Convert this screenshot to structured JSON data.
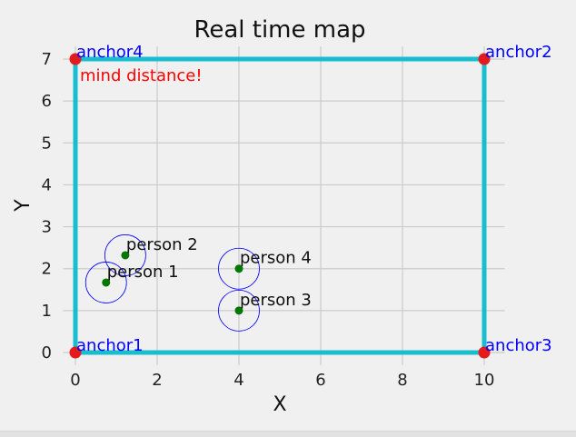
{
  "chart_data": {
    "type": "scatter",
    "title": "Real time map",
    "xlabel": "X",
    "ylabel": "Y",
    "xlim": [
      -0.3,
      10.5
    ],
    "ylim": [
      -0.3,
      7.3
    ],
    "xticks": [
      0,
      2,
      4,
      6,
      8,
      10
    ],
    "yticks": [
      0,
      1,
      2,
      3,
      4,
      5,
      6,
      7
    ],
    "grid": true,
    "boundary": {
      "x": [
        0,
        10,
        10,
        0,
        0
      ],
      "y": [
        0,
        0,
        7,
        7,
        0
      ],
      "color": "#17becf"
    },
    "anchors": [
      {
        "name": "anchor1",
        "x": 0,
        "y": 0
      },
      {
        "name": "anchor2",
        "x": 10,
        "y": 7
      },
      {
        "name": "anchor3",
        "x": 10,
        "y": 0
      },
      {
        "name": "anchor4",
        "x": 0,
        "y": 7
      }
    ],
    "persons": [
      {
        "name": "person 1",
        "x": 0.75,
        "y": 1.67,
        "radius": 0.5
      },
      {
        "name": "person 2",
        "x": 1.22,
        "y": 2.32,
        "radius": 0.5
      },
      {
        "name": "person 3",
        "x": 4.0,
        "y": 1.0,
        "radius": 0.5
      },
      {
        "name": "person 4",
        "x": 4.0,
        "y": 2.0,
        "radius": 0.5
      }
    ],
    "annotation": {
      "text": "mind distance!",
      "color": "#ff0000"
    },
    "colors": {
      "background": "#f0f0f0",
      "grid": "#cbcbcb",
      "anchor_marker": "#e41a1c",
      "anchor_label": "#0000ff",
      "person_marker": "#007700",
      "person_circle": "#0000ff",
      "boundary": "#17becf"
    }
  }
}
